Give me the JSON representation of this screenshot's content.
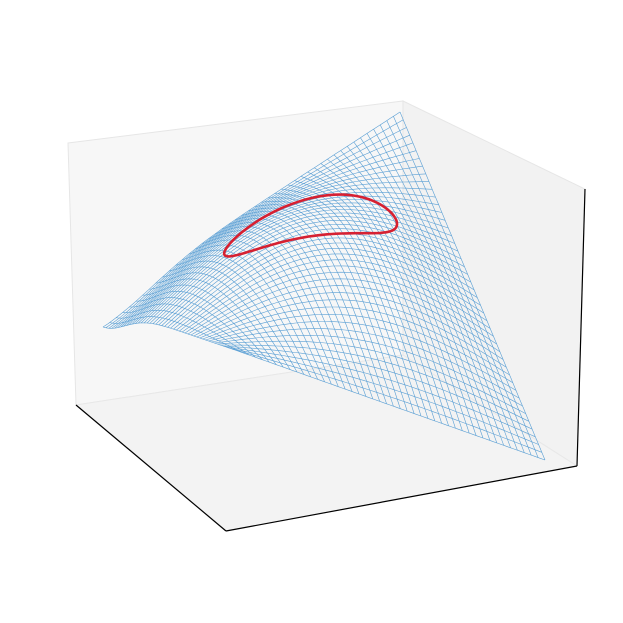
{
  "chart_data": {
    "type": "surface3d",
    "title": "",
    "xlabel": "",
    "ylabel": "",
    "zlabel": "",
    "ticks_visible": false,
    "grid": false,
    "pane_colors": {
      "left": "#f7f7f7",
      "back": "#f2f2f2",
      "floor": "#f3f3f3"
    },
    "axis_line_color": "#000000",
    "surface": {
      "style": "wireframe",
      "color": "#5a9fd4",
      "grid_lines": 45,
      "shape": "saddle"
    },
    "curve": {
      "style": "closed loop",
      "color": "#d62031"
    }
  }
}
